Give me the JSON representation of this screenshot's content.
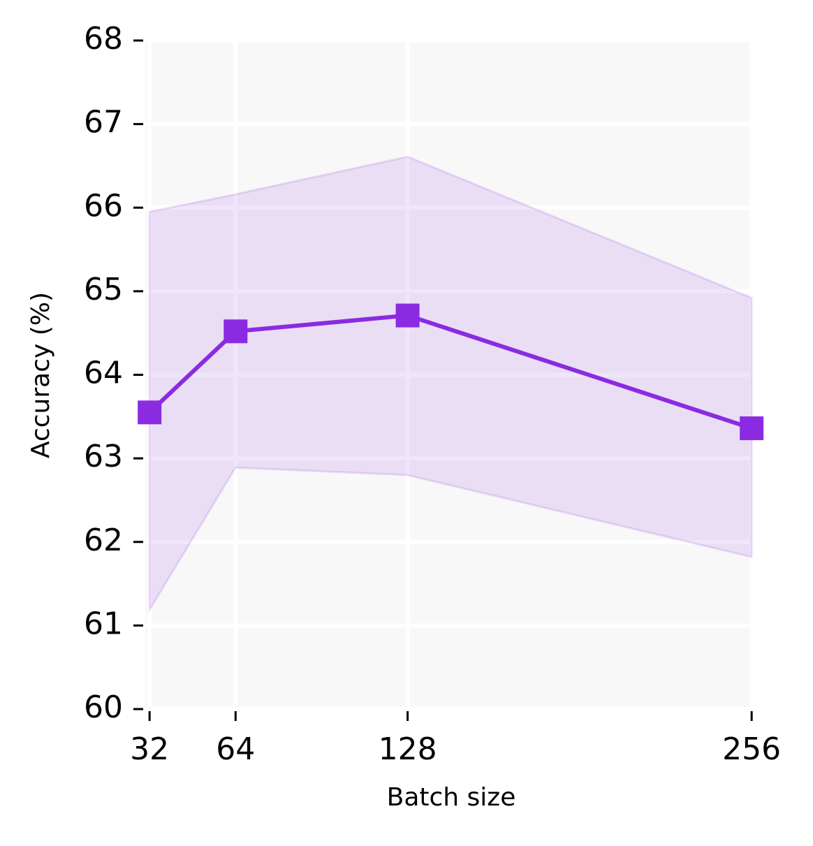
{
  "chart_data": {
    "type": "line",
    "x_label": "Batch size",
    "y_label": "Accuracy (%)",
    "x": [
      32,
      64,
      128,
      256
    ],
    "series": [
      {
        "color": "#8a2be2",
        "values": [
          63.55,
          64.52,
          64.71,
          63.36
        ],
        "upper": [
          65.95,
          66.16,
          66.61,
          64.92
        ],
        "lower": [
          61.19,
          62.89,
          62.8,
          61.82
        ]
      }
    ],
    "xlim": [
      30.4,
      257
    ],
    "ylim": [
      60,
      68
    ],
    "xticks": [
      32,
      64,
      128,
      256
    ],
    "yticks": [
      60,
      61,
      62,
      63,
      64,
      65,
      66,
      67,
      68
    ],
    "grid": true
  }
}
